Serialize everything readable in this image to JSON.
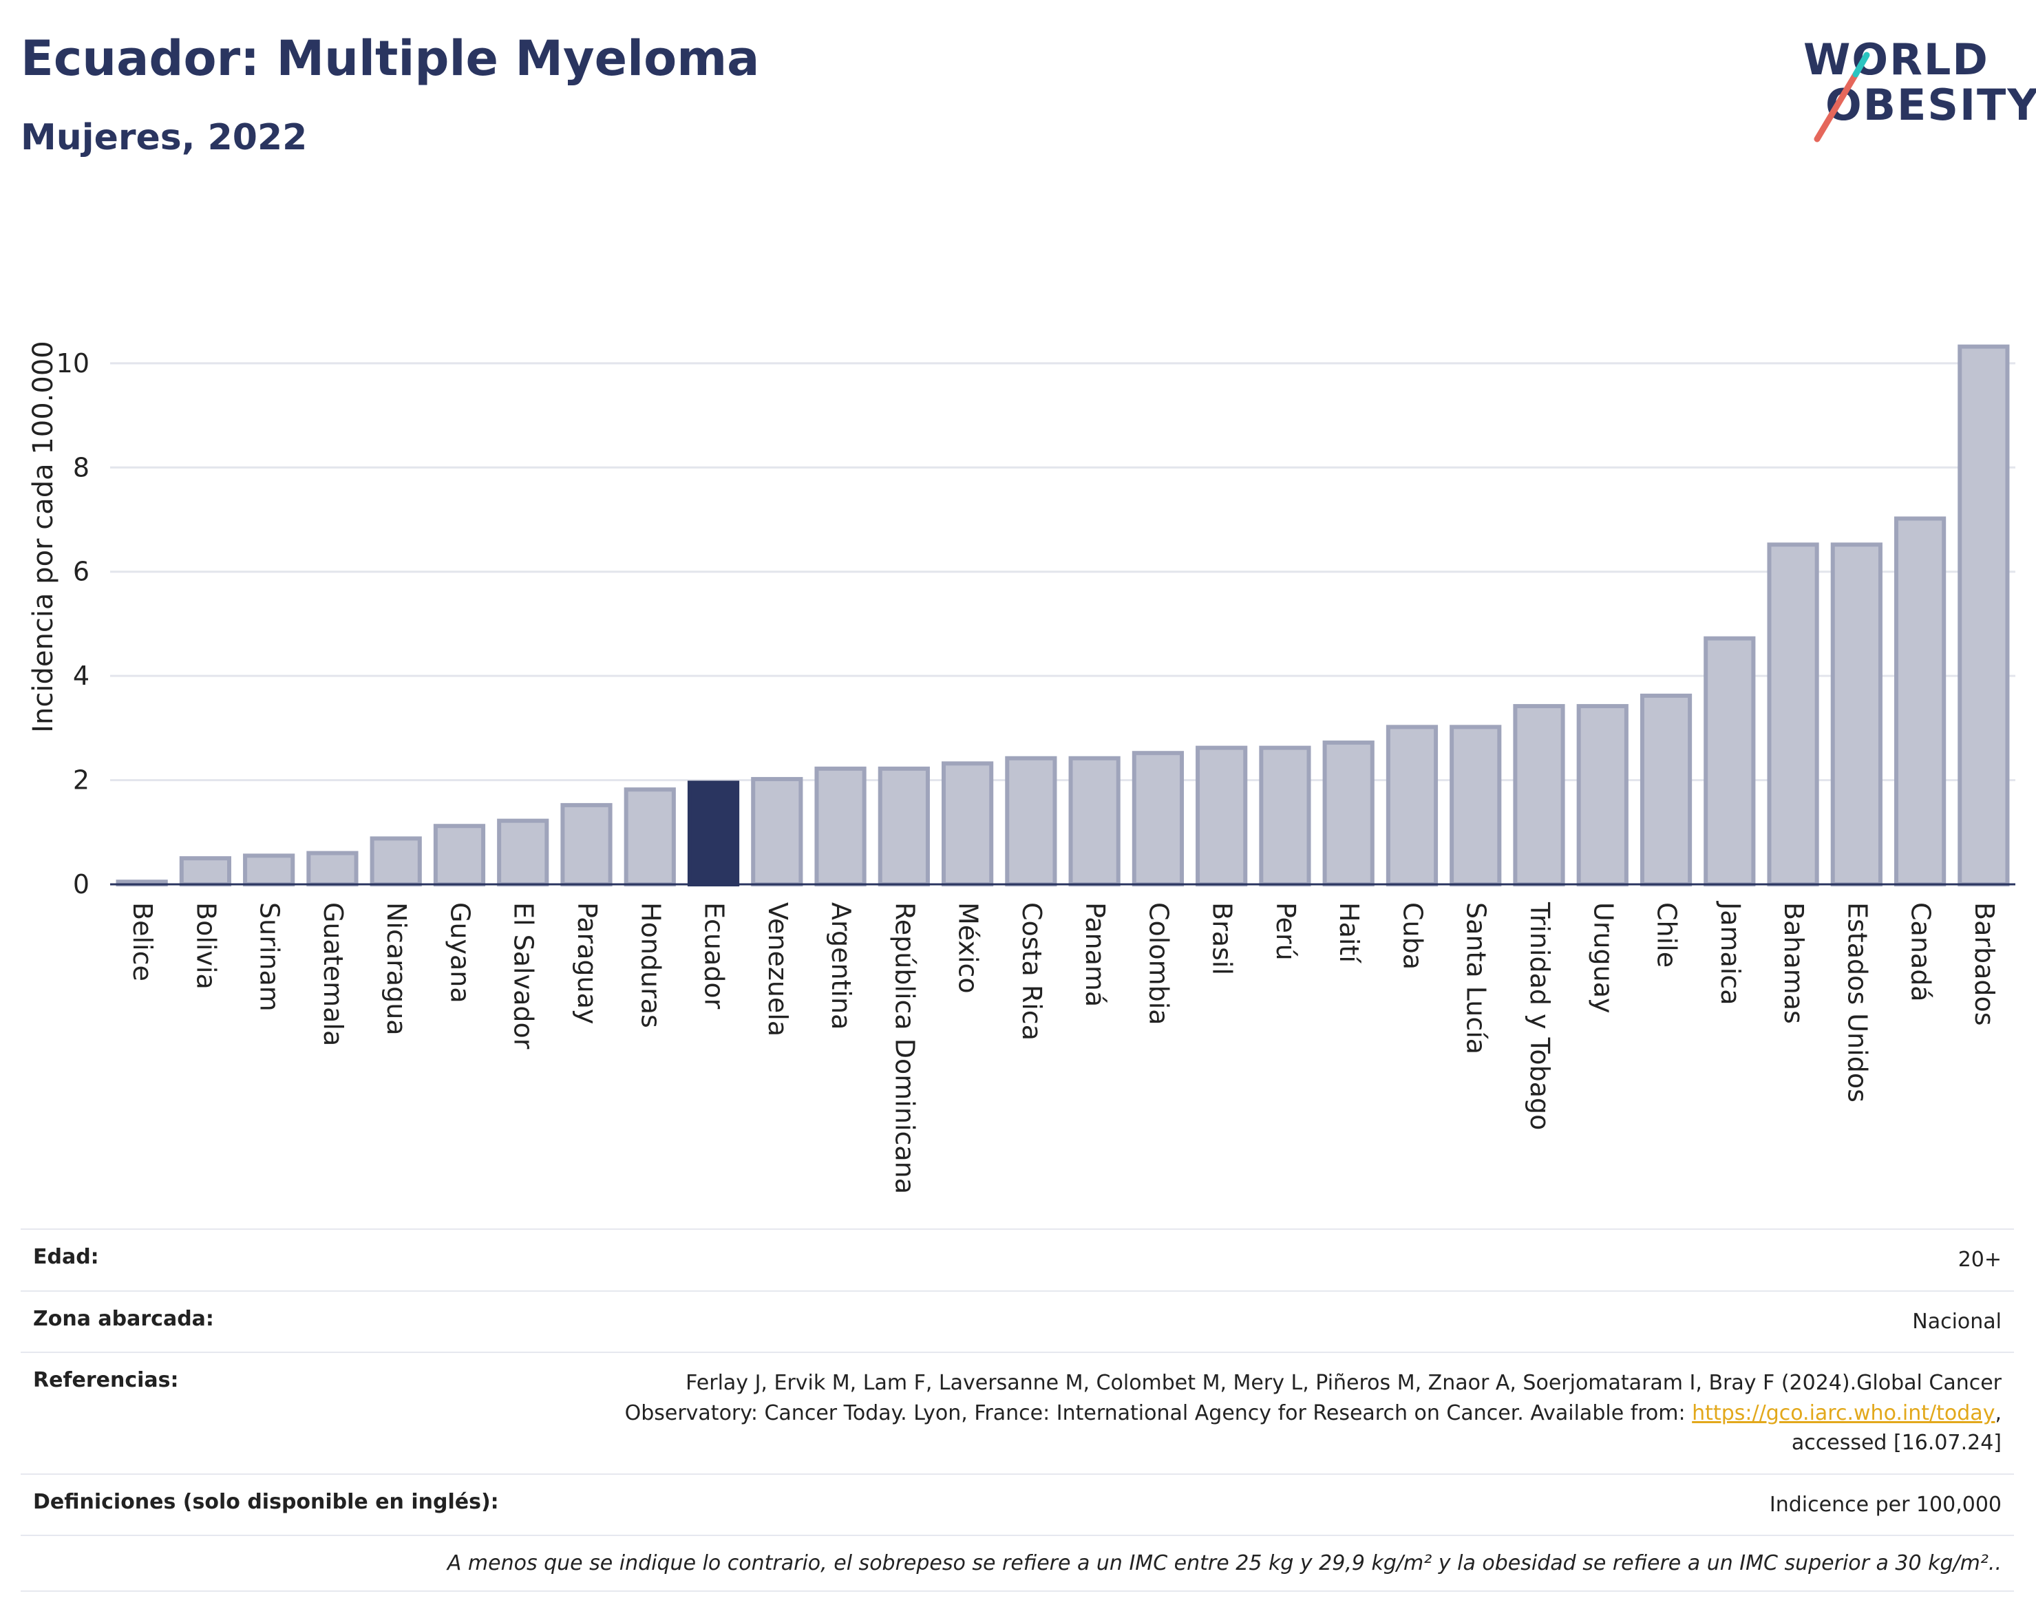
{
  "header": {
    "title": "Ecuador: Multiple Myeloma",
    "subtitle": "Mujeres, 2022"
  },
  "logo": {
    "line1": "WORLD",
    "line2": "OBESITY",
    "accent_colors": [
      "#e5675b",
      "#2cc4c0"
    ]
  },
  "colors": {
    "bar": "#c0c3d1",
    "bar_stroke": "#9fa4bb",
    "highlight": "#2a3560",
    "grid": "#e3e5ec"
  },
  "chart_data": {
    "type": "bar",
    "ylabel": "Incidencia por cada 100.000",
    "ylim": [
      0,
      10.5
    ],
    "yticks": [
      0,
      2,
      4,
      6,
      8,
      10
    ],
    "grid": true,
    "highlight": "Ecuador",
    "categories": [
      "Belice",
      "Bolivia",
      "Surinam",
      "Guatemala",
      "Nicaragua",
      "Guyana",
      "El Salvador",
      "Paraguay",
      "Honduras",
      "Ecuador",
      "Venezuela",
      "Argentina",
      "República Dominicana",
      "México",
      "Costa Rica",
      "Panamá",
      "Colombia",
      "Brasil",
      "Perú",
      "Haití",
      "Cuba",
      "Santa Lucía",
      "Trinidad y Tobago",
      "Uruguay",
      "Chile",
      "Jamaica",
      "Bahamas",
      "Estados Unidos",
      "Canadá",
      "Barbados"
    ],
    "values": [
      0.05,
      0.5,
      0.55,
      0.6,
      0.88,
      1.12,
      1.22,
      1.52,
      1.82,
      1.95,
      2.02,
      2.22,
      2.22,
      2.32,
      2.42,
      2.42,
      2.52,
      2.62,
      2.62,
      2.72,
      3.02,
      3.02,
      3.42,
      3.42,
      3.62,
      4.72,
      6.52,
      6.52,
      7.02,
      10.32
    ]
  },
  "info": {
    "edad_label": "Edad:",
    "edad_value": "20+",
    "zona_label": "Zona abarcada:",
    "zona_value": "Nacional",
    "ref_label": "Referencias:",
    "ref_text_1": "Ferlay J, Ervik M, Lam F, Laversanne M, Colombet M, Mery L, Piñeros M, Znaor A, Soerjomataram I, Bray F (2024).Global Cancer",
    "ref_text_2": "Observatory: Cancer Today. Lyon, France: International Agency for Research on Cancer. Available from: ",
    "ref_link": "https://gco.iarc.who.int/today",
    "ref_text_3": ",",
    "ref_text_4": "accessed [16.07.24]",
    "def_label": "Definiciones (solo disponible en inglés):",
    "def_value": "Indicence per 100,000",
    "note": "A menos que se indique lo contrario, el sobrepeso se refiere a un IMC entre 25 kg y 29,9 kg/m² y la obesidad se refiere a un IMC superior a 30 kg/m².."
  }
}
